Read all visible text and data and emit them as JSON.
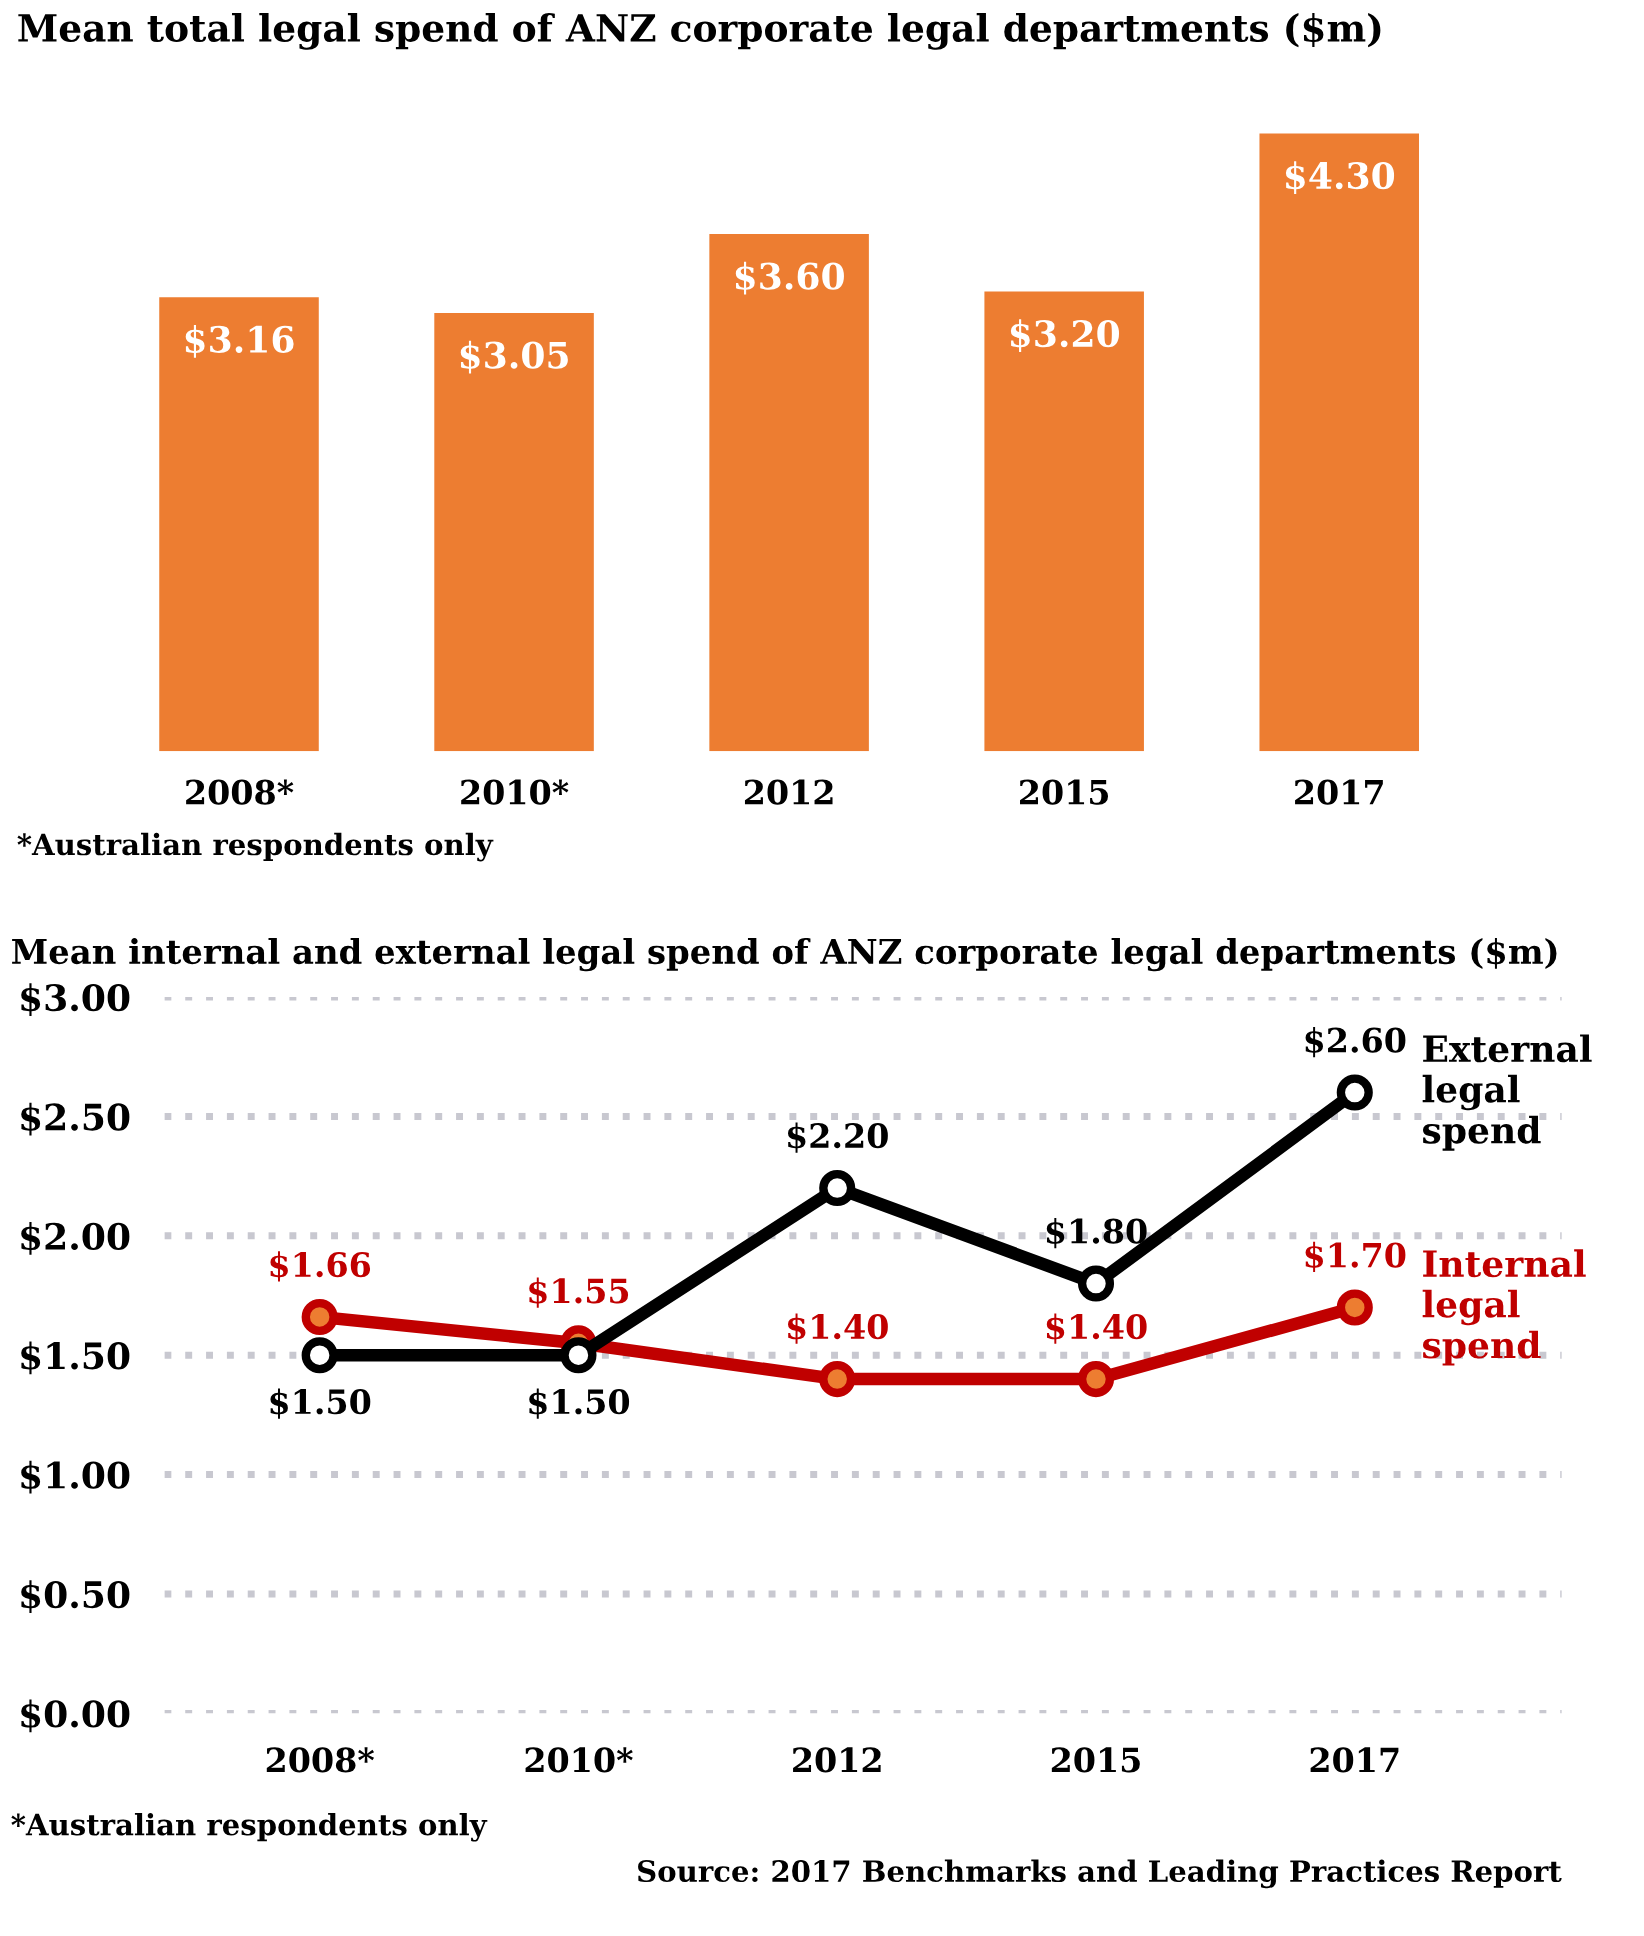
{
  "chart_data": [
    {
      "type": "bar",
      "title": "Mean total legal spend of ANZ corporate legal departments ($m)",
      "categories": [
        "2008*",
        "2010*",
        "2012",
        "2015",
        "2017"
      ],
      "values": [
        3.16,
        3.05,
        3.6,
        3.2,
        4.3
      ],
      "value_labels": [
        "$3.16",
        "$3.05",
        "$3.60",
        "$3.20",
        "$4.30"
      ],
      "color": "#ed7d31",
      "annotations": [
        "*Australian respondents only"
      ]
    },
    {
      "type": "line",
      "title": "Mean internal and external legal spend of ANZ corporate legal departments ($m)",
      "categories": [
        "2008*",
        "2010*",
        "2012",
        "2015",
        "2017"
      ],
      "series": [
        {
          "name": "External legal spend",
          "color": "#000000",
          "values": [
            1.5,
            1.5,
            2.2,
            1.8,
            2.6
          ],
          "value_labels": [
            "$1.50",
            "$1.50",
            "$2.20",
            "$1.80",
            "$2.60"
          ]
        },
        {
          "name": "Internal legal spend",
          "color": "#c00000",
          "values": [
            1.66,
            1.55,
            1.4,
            1.4,
            1.7
          ],
          "value_labels": [
            "$1.66",
            "$1.55",
            "$1.40",
            "$1.40",
            "$1.70"
          ]
        }
      ],
      "ylim": [
        0,
        3
      ],
      "yticks": [
        {
          "value": 0,
          "label": "$0.00"
        },
        {
          "value": 0.5,
          "label": "$0.50"
        },
        {
          "value": 1,
          "label": "$1.00"
        },
        {
          "value": 1.5,
          "label": "$1.50"
        },
        {
          "value": 2,
          "label": "$2.00"
        },
        {
          "value": 2.5,
          "label": "$2.50"
        },
        {
          "value": 3,
          "label": "$3.00"
        }
      ],
      "grid": "y",
      "marker": "circle",
      "line_style": "solid",
      "annotations": [
        "*Australian respondents only",
        "Source: 2017 Benchmarks and Leading Practices Report"
      ]
    }
  ]
}
